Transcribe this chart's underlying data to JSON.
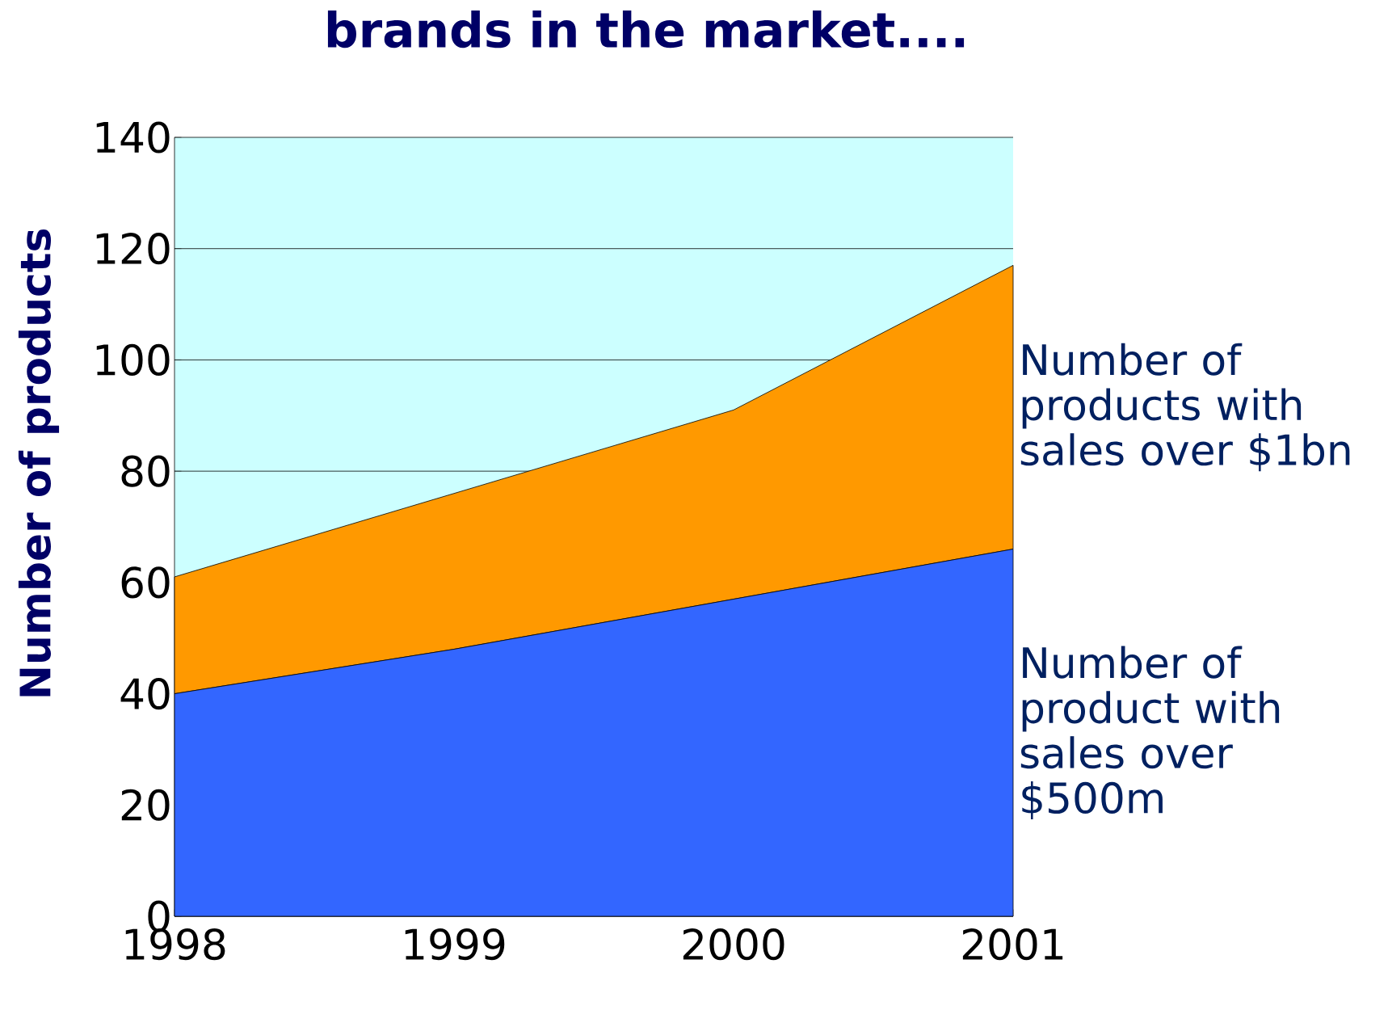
{
  "chart_data": {
    "type": "area",
    "title": "brands in the market....",
    "ylabel": "Number of products",
    "x": [
      1998,
      1999,
      2000,
      2001
    ],
    "stacked": true,
    "xlim": [
      1998,
      2001
    ],
    "ylim": [
      0,
      140
    ],
    "xticks": [
      1998,
      1999,
      2000,
      2001
    ],
    "yticks": [
      0,
      20,
      40,
      60,
      80,
      100,
      120,
      140
    ],
    "grid": "y",
    "legend": false,
    "series": [
      {
        "name": "Number of product with sales over $500m",
        "color": "#3366ff",
        "values": [
          40,
          48,
          57,
          66
        ]
      },
      {
        "name": "Number of products with sales over $1bn",
        "color": "#ff9900",
        "values": [
          21,
          28,
          34,
          51
        ]
      }
    ]
  }
}
